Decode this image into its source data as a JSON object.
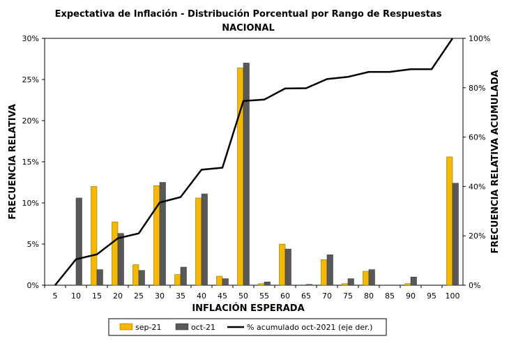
{
  "chart_data": {
    "type": "bar",
    "title": "Expectativa de Inflación - Distribución Porcentual por Rango de Respuestas",
    "subtitle": "NACIONAL",
    "xlabel": "INFLACIÓN ESPERADA",
    "ylabel": "FRECUENCIA RELATIVA",
    "ylabel_right": "FRECUENCIA RELATIVA ACUMULADA",
    "categories": [
      "5",
      "10",
      "15",
      "20",
      "25",
      "30",
      "35",
      "40",
      "45",
      "50",
      "55",
      "60",
      "65",
      "70",
      "75",
      "80",
      "85",
      "90",
      "95",
      "100"
    ],
    "ylim": [
      0,
      30
    ],
    "yticks": [
      "0%",
      "5%",
      "10%",
      "15%",
      "20%",
      "25%",
      "30%"
    ],
    "ylim_right": [
      0,
      100
    ],
    "yticks_right": [
      "0%",
      "20%",
      "40%",
      "60%",
      "80%",
      "100%"
    ],
    "grid": false,
    "legend_position": "bottom",
    "series": [
      {
        "name": "sep-21",
        "kind": "bar",
        "axis": "left",
        "color": "#f5b800",
        "values": [
          0,
          0,
          12.0,
          7.7,
          2.5,
          12.1,
          1.3,
          10.6,
          1.1,
          26.4,
          0.2,
          5.0,
          0,
          3.1,
          0.2,
          1.7,
          0,
          0.2,
          0,
          15.6
        ]
      },
      {
        "name": "oct-21",
        "kind": "bar",
        "axis": "left",
        "color": "#595959",
        "values": [
          0,
          10.6,
          1.9,
          6.3,
          1.8,
          12.5,
          2.2,
          11.1,
          0.8,
          27.0,
          0.4,
          4.4,
          0.1,
          3.7,
          0.8,
          1.9,
          0,
          1.0,
          0,
          12.4
        ]
      },
      {
        "name": "% acumulado oct-2021 (eje der.)",
        "kind": "line",
        "axis": "right",
        "color": "#000000",
        "values": [
          0,
          10.5,
          12.5,
          19.0,
          21.0,
          33.5,
          35.7,
          46.8,
          47.6,
          74.6,
          75.2,
          79.7,
          79.8,
          83.5,
          84.4,
          86.4,
          86.4,
          87.5,
          87.5,
          100
        ]
      }
    ]
  }
}
